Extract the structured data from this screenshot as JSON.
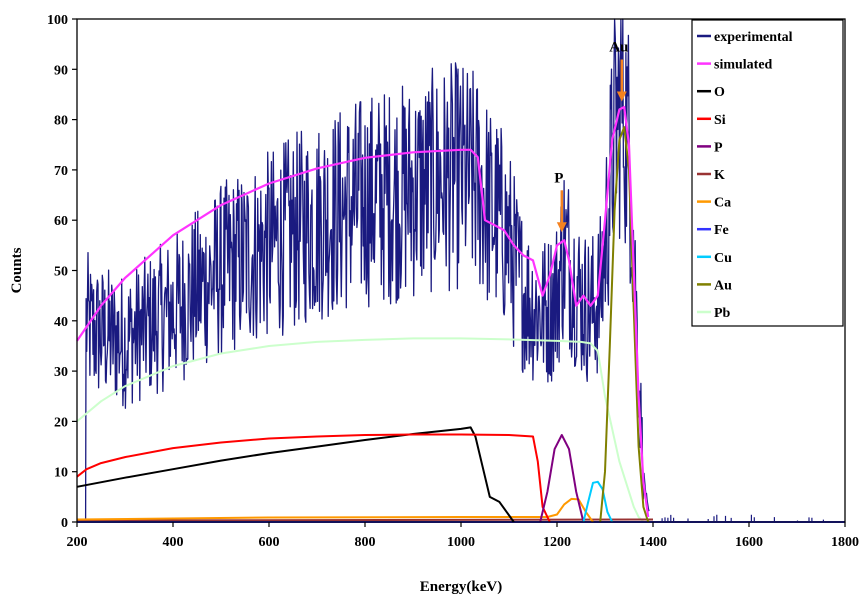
{
  "chart_data": {
    "type": "line",
    "xlabel": "Energy(keV)",
    "ylabel": "Counts",
    "xlim": [
      200,
      1800
    ],
    "ylim": [
      0,
      100
    ],
    "xticks": [
      200,
      400,
      600,
      800,
      1000,
      1200,
      1400,
      1600,
      1800
    ],
    "yticks": [
      0,
      10,
      20,
      30,
      40,
      50,
      60,
      70,
      80,
      90,
      100
    ],
    "grid": false,
    "legend_position": "top-right",
    "legend": [
      "experimental",
      "simulated",
      "O",
      "Si",
      "P",
      "K",
      "Ca",
      "Fe",
      "Cu",
      "Au",
      "Pb"
    ],
    "annotations": [
      {
        "text": "Au",
        "x": 1335,
        "y": 83,
        "arrow_color": "#f58220"
      },
      {
        "text": "P",
        "x": 1210,
        "y": 57,
        "arrow_color": "#f58220"
      }
    ],
    "series": [
      {
        "name": "simulated",
        "color": "#ff33ff",
        "x": [
          200,
          250,
          300,
          400,
          500,
          600,
          700,
          800,
          900,
          1000,
          1020,
          1035,
          1050,
          1070,
          1090,
          1110,
          1130,
          1150,
          1170,
          1185,
          1200,
          1215,
          1225,
          1240,
          1255,
          1270,
          1285,
          1300,
          1315,
          1330,
          1340,
          1350,
          1360,
          1370,
          1380,
          1390
        ],
        "y": [
          36,
          43,
          48.5,
          57,
          63,
          67.3,
          70.3,
          72.4,
          73.5,
          74,
          74,
          72.5,
          60,
          59,
          58,
          55,
          53,
          52,
          45,
          49,
          55,
          56,
          52,
          43,
          45,
          43,
          45,
          60,
          76,
          82,
          82.5,
          75,
          50,
          25,
          8,
          1
        ]
      },
      {
        "name": "O",
        "color": "#000000",
        "x": [
          200,
          300,
          400,
          500,
          600,
          700,
          800,
          900,
          1000,
          1020,
          1030,
          1045,
          1060,
          1080,
          1095,
          1110
        ],
        "y": [
          7,
          8.8,
          10.5,
          12.2,
          13.7,
          15,
          16.3,
          17.5,
          18.5,
          18.8,
          17,
          11,
          5,
          4,
          2,
          0
        ]
      },
      {
        "name": "Si",
        "color": "#ff0000",
        "x": [
          200,
          220,
          250,
          300,
          400,
          500,
          600,
          700,
          800,
          900,
          1000,
          1100,
          1150,
          1160,
          1170,
          1185
        ],
        "y": [
          9,
          10.5,
          11.7,
          12.9,
          14.7,
          15.8,
          16.6,
          17,
          17.3,
          17.4,
          17.4,
          17.3,
          17,
          12,
          3,
          0
        ]
      },
      {
        "name": "P",
        "color": "#800080",
        "x": [
          1165,
          1180,
          1195,
          1210,
          1225,
          1240,
          1255
        ],
        "y": [
          0,
          6,
          14.5,
          17.3,
          14.5,
          6,
          0
        ]
      },
      {
        "name": "K",
        "color": "#993333",
        "x": [
          200,
          1400
        ],
        "y": [
          0.3,
          0.5
        ]
      },
      {
        "name": "Ca",
        "color": "#ff9900",
        "x": [
          200,
          600,
          1000,
          1180,
          1200,
          1215,
          1230,
          1245,
          1260,
          1275
        ],
        "y": [
          0.5,
          0.9,
          1,
          1,
          1.5,
          3.5,
          4.6,
          4.5,
          2,
          0
        ]
      },
      {
        "name": "Fe",
        "color": "#3333ff",
        "x": [
          200,
          1800
        ],
        "y": [
          0,
          0
        ]
      },
      {
        "name": "Cu",
        "color": "#00ccff",
        "x": [
          1255,
          1265,
          1275,
          1285,
          1295,
          1305,
          1315
        ],
        "y": [
          0,
          4,
          7.8,
          8,
          6.5,
          2,
          0
        ]
      },
      {
        "name": "Au",
        "color": "#808000",
        "x": [
          1290,
          1300,
          1310,
          1320,
          1330,
          1340,
          1350,
          1360,
          1370,
          1380,
          1390
        ],
        "y": [
          0,
          10,
          35,
          62,
          76,
          78.5,
          70,
          42,
          15,
          3,
          0
        ]
      },
      {
        "name": "Pb",
        "color": "#ccffcc",
        "x": [
          200,
          250,
          300,
          400,
          500,
          600,
          700,
          800,
          900,
          1000,
          1100,
          1200,
          1250,
          1270,
          1285,
          1300,
          1330,
          1360,
          1370,
          1380
        ],
        "y": [
          20,
          24,
          27,
          31,
          33.5,
          35,
          35.8,
          36.2,
          36.5,
          36.5,
          36.3,
          36,
          35.8,
          35.5,
          34,
          25,
          12,
          3,
          1,
          0
        ]
      }
    ]
  }
}
